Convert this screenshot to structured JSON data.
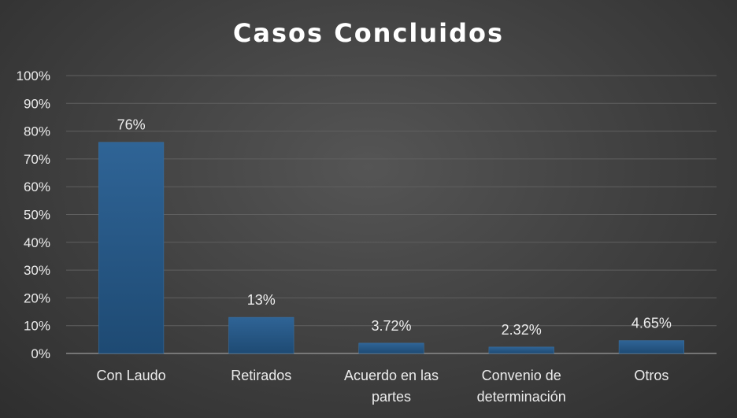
{
  "chart_data": {
    "type": "bar",
    "title": "Casos Concluidos",
    "categories": [
      [
        "Con Laudo"
      ],
      [
        "Retirados"
      ],
      [
        "Acuerdo en las",
        "partes"
      ],
      [
        "Convenio de",
        "determinación"
      ],
      [
        "Otros"
      ]
    ],
    "values": [
      76,
      13,
      3.72,
      2.32,
      4.65
    ],
    "data_labels": [
      "76%",
      "13%",
      "3.72%",
      "2.32%",
      "4.65%"
    ],
    "y_ticks": [
      "0%",
      "10%",
      "20%",
      "30%",
      "40%",
      "50%",
      "60%",
      "70%",
      "80%",
      "90%",
      "100%"
    ],
    "ylim": [
      0,
      100
    ],
    "xlabel": "",
    "ylabel": "",
    "grid": true,
    "colors": {
      "bar": "#22527e",
      "bar_top": "#2f6496",
      "background": "#3f3f3f"
    }
  }
}
